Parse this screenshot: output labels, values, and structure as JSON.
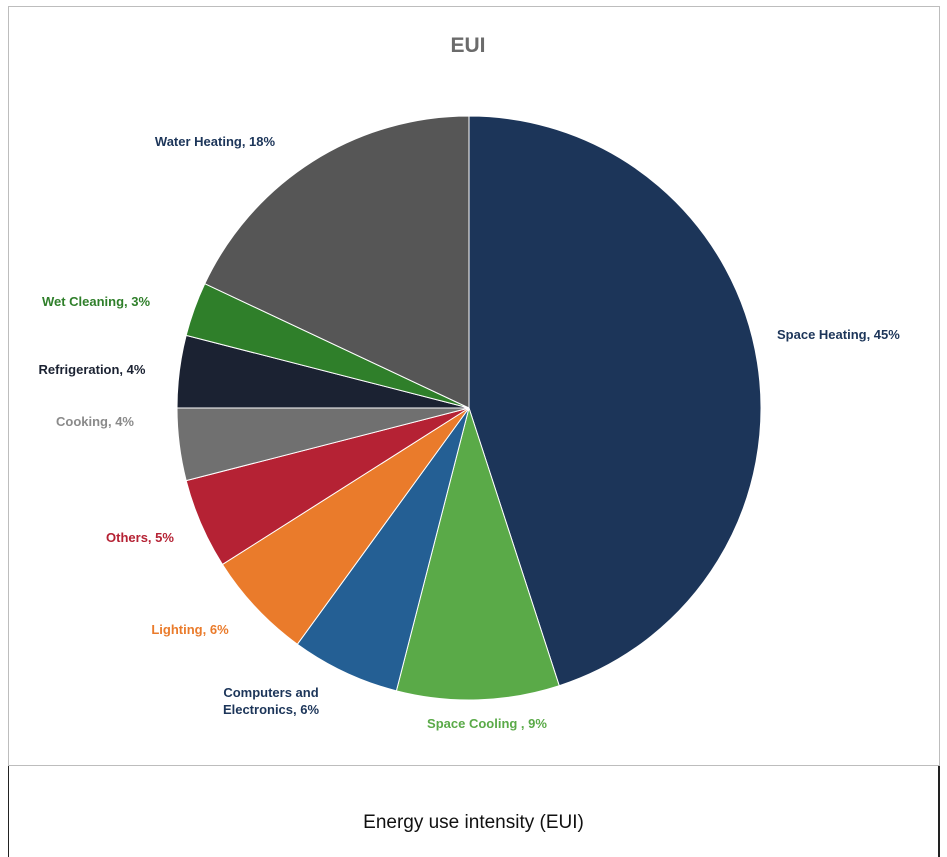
{
  "chart_data": {
    "type": "pie",
    "title": "EUI",
    "slices": [
      {
        "label": "Space Heating, 45%",
        "value": 45,
        "color": "#1c3559",
        "label_color": "#1c3559"
      },
      {
        "label": "Space Cooling , 9%",
        "value": 9,
        "color": "#5aaa48",
        "label_color": "#5aaa48"
      },
      {
        "label": "Computers and Electronics, 6%",
        "value": 6,
        "color": "#245f94",
        "label_color": "#1c3559"
      },
      {
        "label": "Lighting, 6%",
        "value": 6,
        "color": "#ea7b2b",
        "label_color": "#ea7b2b"
      },
      {
        "label": "Others, 5%",
        "value": 5,
        "color": "#b52234",
        "label_color": "#b52234"
      },
      {
        "label": "Cooking, 4%",
        "value": 4,
        "color": "#707070",
        "label_color": "#8a8a8a"
      },
      {
        "label": "Refrigeration, 4%",
        "value": 4,
        "color": "#1b2232",
        "label_color": "#1b2232"
      },
      {
        "label": "Wet Cleaning, 3%",
        "value": 3,
        "color": "#2f7f2a",
        "label_color": "#2f7f2a"
      },
      {
        "label": "Water Heating, 18%",
        "value": 18,
        "color": "#565656",
        "label_color": "#1c3559"
      }
    ]
  },
  "caption": "Energy use intensity (EUI)"
}
